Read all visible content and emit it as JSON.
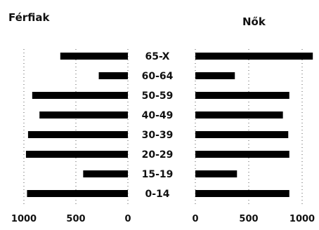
{
  "chart_data": {
    "type": "bar",
    "orientation": "horizontal",
    "layout": "population-pyramid",
    "categories": [
      "65-X",
      "60-64",
      "50-59",
      "40-49",
      "30-39",
      "20-29",
      "15-19",
      "0-14"
    ],
    "series": [
      {
        "name": "Férfiak",
        "values": [
          650,
          280,
          920,
          850,
          960,
          980,
          430,
          970
        ],
        "direction": "left"
      },
      {
        "name": "Nők",
        "values": [
          1100,
          370,
          880,
          820,
          870,
          880,
          390,
          880
        ],
        "direction": "right"
      }
    ],
    "left_axis": {
      "range": [
        0,
        1000
      ],
      "ticks": [
        "1000",
        "500",
        "0"
      ]
    },
    "right_axis": {
      "range": [
        0,
        1000
      ],
      "ticks": [
        "0",
        "500",
        "1000"
      ]
    },
    "colors": {
      "bar": "#000000"
    },
    "gridlines": "dotted"
  }
}
